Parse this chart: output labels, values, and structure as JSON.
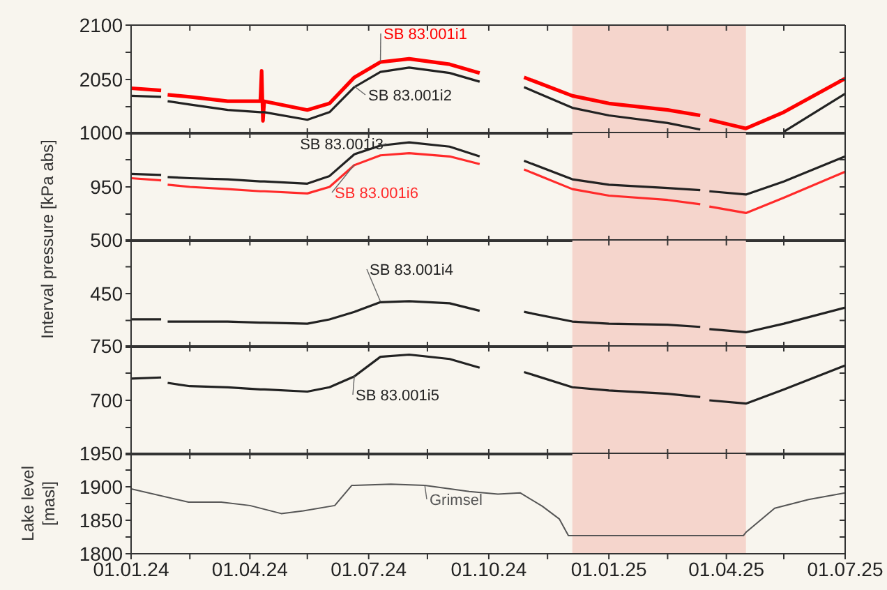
{
  "chart_data": [
    {
      "type": "line",
      "x": [
        "2024-01-01",
        "2024-01-24",
        "2024-01-26",
        "2024-01-29",
        "2024-02-15",
        "2024-03-15",
        "2024-04-09",
        "2024-04-10",
        "2024-04-11",
        "2024-04-12",
        "2024-05-15",
        "2024-06-01",
        "2024-06-20",
        "2024-07-10",
        "2024-08-01",
        "2024-09-01",
        "2024-09-24",
        "2024-10-10",
        "2024-10-28",
        "2024-12-04",
        "2025-01-01",
        "2025-02-15",
        "2025-03-12",
        "2025-03-15",
        "2025-03-19",
        "2025-04-16",
        "2025-05-15",
        "2025-07-01"
      ],
      "series": [
        {
          "name": "SB 83.001i1",
          "color": "#ff0000",
          "values": [
            2042,
            2040,
            null,
            2036,
            2034,
            2030,
            2030,
            2058,
            2012,
            2030,
            2022,
            2028,
            2052,
            2066,
            2069,
            2064,
            2056,
            null,
            2052,
            2035,
            2028,
            2022,
            2017,
            null,
            2013,
            2005,
            2020,
            2051
          ]
        },
        {
          "name": "SB 83.001i2",
          "color": "#222222",
          "values": [
            2035,
            2034,
            null,
            2030,
            2027,
            2022,
            2020,
            2020,
            2020,
            2020,
            2013,
            2020,
            2043,
            2057,
            2061,
            2056,
            2048,
            null,
            2043,
            2024,
            2017,
            2010,
            2004,
            null,
            null,
            null,
            2002,
            2037
          ]
        }
      ],
      "xlim": [
        "2024-01-01",
        "2025-07-01"
      ],
      "xticks": [
        {
          "value": "2024-01-01",
          "label": null
        },
        {
          "value": "2024-02-15",
          "label": null
        },
        {
          "value": "2024-04-01",
          "label": null
        },
        {
          "value": "2024-05-15",
          "label": null
        },
        {
          "value": "2024-07-01",
          "label": null
        },
        {
          "value": "2024-08-15",
          "label": null
        },
        {
          "value": "2024-10-01",
          "label": null
        },
        {
          "value": "2024-11-15",
          "label": null
        },
        {
          "value": "2025-01-01",
          "label": null
        },
        {
          "value": "2025-02-15",
          "label": null
        },
        {
          "value": "2025-04-01",
          "label": null
        },
        {
          "value": "2025-05-15",
          "label": null
        },
        {
          "value": "2025-07-01",
          "label": null
        }
      ],
      "ylim": [
        2000,
        2100
      ],
      "yticks": [
        {
          "value": 2000,
          "label": null
        },
        {
          "value": 2025,
          "label": null
        },
        2050,
        {
          "value": 2075,
          "label": null
        },
        2100
      ],
      "bands": [
        {
          "axis": "x",
          "from": "2024-12-04",
          "to": "2025-04-16",
          "color": "#f5d5cc"
        }
      ],
      "tick_labels": "y",
      "grid": false,
      "legend": false
    },
    {
      "type": "line",
      "ylabel": "Interval pressure [kPa abs]",
      "x": [
        "2024-01-01",
        "2024-01-24",
        "2024-01-26",
        "2024-01-29",
        "2024-02-15",
        "2024-03-15",
        "2024-04-09",
        "2024-04-10",
        "2024-04-11",
        "2024-04-12",
        "2024-05-15",
        "2024-06-01",
        "2024-06-20",
        "2024-07-10",
        "2024-08-01",
        "2024-09-01",
        "2024-09-24",
        "2024-10-10",
        "2024-10-28",
        "2024-12-04",
        "2025-01-01",
        "2025-02-15",
        "2025-03-12",
        "2025-03-15",
        "2025-03-19",
        "2025-04-16",
        "2025-05-15",
        "2025-07-01"
      ],
      "series": [
        {
          "name": "SB 83.001i3",
          "color": "#222222",
          "values": [
            962,
            961,
            null,
            959,
            958,
            957,
            955,
            955,
            955,
            955,
            953,
            960,
            980,
            988,
            991,
            987,
            978,
            null,
            974,
            957,
            952,
            949,
            947,
            null,
            946,
            943,
            955,
            978
          ]
        },
        {
          "name": "SB 83.001i6",
          "color": "#ff2a2a",
          "values": [
            958,
            956,
            null,
            952,
            950,
            948,
            946,
            946,
            946,
            946,
            944,
            950,
            970,
            979,
            981,
            978,
            971,
            null,
            966,
            948,
            942,
            938,
            934,
            null,
            932,
            926,
            940,
            964
          ]
        }
      ],
      "xlim": [
        "2024-01-01",
        "2025-07-01"
      ],
      "xticks": [
        {
          "value": "2024-01-01",
          "label": null
        },
        {
          "value": "2024-02-15",
          "label": null
        },
        {
          "value": "2024-04-01",
          "label": null
        },
        {
          "value": "2024-05-15",
          "label": null
        },
        {
          "value": "2024-07-01",
          "label": null
        },
        {
          "value": "2024-08-15",
          "label": null
        },
        {
          "value": "2024-10-01",
          "label": null
        },
        {
          "value": "2024-11-15",
          "label": null
        },
        {
          "value": "2025-01-01",
          "label": null
        },
        {
          "value": "2025-02-15",
          "label": null
        },
        {
          "value": "2025-04-01",
          "label": null
        },
        {
          "value": "2025-05-15",
          "label": null
        },
        {
          "value": "2025-07-01",
          "label": null
        }
      ],
      "ylim": [
        900,
        1000
      ],
      "yticks": [
        {
          "value": 900,
          "label": null
        },
        {
          "value": 925,
          "label": null
        },
        950,
        {
          "value": 975,
          "label": null
        },
        1000
      ],
      "bands": [
        {
          "axis": "x",
          "from": "2024-12-04",
          "to": "2025-04-16",
          "color": "#f5d5cc"
        }
      ],
      "tick_labels": "y",
      "grid": false,
      "legend": false
    },
    {
      "type": "line",
      "x": [
        "2024-01-01",
        "2024-01-24",
        "2024-01-26",
        "2024-01-29",
        "2024-02-15",
        "2024-03-15",
        "2024-04-09",
        "2024-04-10",
        "2024-04-11",
        "2024-04-12",
        "2024-05-15",
        "2024-06-01",
        "2024-06-20",
        "2024-07-10",
        "2024-08-01",
        "2024-09-01",
        "2024-09-24",
        "2024-10-10",
        "2024-10-28",
        "2024-12-04",
        "2025-01-01",
        "2025-02-15",
        "2025-03-12",
        "2025-03-15",
        "2025-03-19",
        "2025-04-16",
        "2025-05-15",
        "2025-07-01"
      ],
      "series": [
        {
          "name": "SB 83.001i4",
          "color": "#222222",
          "values": [
            426,
            426,
            null,
            424,
            424,
            424,
            423,
            423,
            423,
            423,
            422,
            426,
            433,
            442,
            443,
            441,
            434,
            null,
            433,
            424,
            422,
            421,
            419,
            null,
            417,
            414,
            422,
            437
          ]
        }
      ],
      "xlim": [
        "2024-01-01",
        "2025-07-01"
      ],
      "xticks": [
        {
          "value": "2024-01-01",
          "label": null
        },
        {
          "value": "2024-02-15",
          "label": null
        },
        {
          "value": "2024-04-01",
          "label": null
        },
        {
          "value": "2024-05-15",
          "label": null
        },
        {
          "value": "2024-07-01",
          "label": null
        },
        {
          "value": "2024-08-15",
          "label": null
        },
        {
          "value": "2024-10-01",
          "label": null
        },
        {
          "value": "2024-11-15",
          "label": null
        },
        {
          "value": "2025-01-01",
          "label": null
        },
        {
          "value": "2025-02-15",
          "label": null
        },
        {
          "value": "2025-04-01",
          "label": null
        },
        {
          "value": "2025-05-15",
          "label": null
        },
        {
          "value": "2025-07-01",
          "label": null
        }
      ],
      "ylim": [
        400,
        500
      ],
      "yticks": [
        {
          "value": 400,
          "label": null
        },
        {
          "value": 425,
          "label": null
        },
        450,
        {
          "value": 475,
          "label": null
        },
        500
      ],
      "bands": [
        {
          "axis": "x",
          "from": "2024-12-04",
          "to": "2025-04-16",
          "color": "#f5d5cc"
        }
      ],
      "tick_labels": "y",
      "grid": false,
      "legend": false
    },
    {
      "type": "line",
      "x": [
        "2024-01-01",
        "2024-01-24",
        "2024-01-26",
        "2024-01-29",
        "2024-02-15",
        "2024-03-15",
        "2024-04-09",
        "2024-04-10",
        "2024-04-11",
        "2024-04-12",
        "2024-05-15",
        "2024-06-01",
        "2024-06-20",
        "2024-07-10",
        "2024-08-01",
        "2024-09-01",
        "2024-09-24",
        "2024-10-10",
        "2024-10-28",
        "2024-12-04",
        "2025-01-01",
        "2025-02-15",
        "2025-03-12",
        "2025-03-15",
        "2025-03-19",
        "2025-04-16",
        "2025-05-15",
        "2025-07-01"
      ],
      "series": [
        {
          "name": "SB 83.001i5",
          "color": "#222222",
          "values": [
            720,
            721,
            null,
            716,
            713,
            712,
            710,
            710,
            710,
            710,
            708,
            712,
            722,
            740,
            742,
            738,
            730,
            null,
            726,
            712,
            709,
            706,
            703,
            null,
            700,
            697,
            710,
            732
          ]
        }
      ],
      "xlim": [
        "2024-01-01",
        "2025-07-01"
      ],
      "xticks": [
        {
          "value": "2024-01-01",
          "label": null
        },
        {
          "value": "2024-02-15",
          "label": null
        },
        {
          "value": "2024-04-01",
          "label": null
        },
        {
          "value": "2024-05-15",
          "label": null
        },
        {
          "value": "2024-07-01",
          "label": null
        },
        {
          "value": "2024-08-15",
          "label": null
        },
        {
          "value": "2024-10-01",
          "label": null
        },
        {
          "value": "2024-11-15",
          "label": null
        },
        {
          "value": "2025-01-01",
          "label": null
        },
        {
          "value": "2025-02-15",
          "label": null
        },
        {
          "value": "2025-04-01",
          "label": null
        },
        {
          "value": "2025-05-15",
          "label": null
        },
        {
          "value": "2025-07-01",
          "label": null
        }
      ],
      "ylim": [
        650,
        750
      ],
      "yticks": [
        {
          "value": 650,
          "label": null
        },
        {
          "value": 675,
          "label": null
        },
        700,
        {
          "value": 725,
          "label": null
        },
        750
      ],
      "bands": [
        {
          "axis": "x",
          "from": "2024-12-04",
          "to": "2025-04-16",
          "color": "#f5d5cc"
        }
      ],
      "tick_labels": "y",
      "grid": false,
      "legend": false
    },
    {
      "type": "line",
      "ylabel": "Lake level [masl]",
      "series": [
        {
          "name": "Grimsel",
          "color": "#555555",
          "x": [
            "2024-01-01",
            "2024-02-14",
            "2024-03-10",
            "2024-04-01",
            "2024-04-25",
            "2024-05-12",
            "2024-06-05",
            "2024-06-18",
            "2024-07-18",
            "2024-08-13",
            "2024-09-16",
            "2024-10-08",
            "2024-10-25",
            "2024-11-11",
            "2024-11-24",
            "2024-12-01",
            "2025-04-14",
            "2025-04-16",
            "2025-05-08",
            "2025-06-03",
            "2025-07-01"
          ],
          "values": [
            1897,
            1877,
            1877,
            1872,
            1860,
            1864,
            1872,
            1902,
            1904,
            1902,
            1893,
            1889,
            1891,
            1871,
            1852,
            1827,
            1827,
            1832,
            1868,
            1881,
            1891
          ]
        }
      ],
      "xlim": [
        "2024-01-01",
        "2025-07-01"
      ],
      "xticks": [
        {
          "value": "2024-01-01",
          "label": "01.01.24"
        },
        {
          "value": "2024-02-15",
          "label": null
        },
        {
          "value": "2024-04-01",
          "label": "01.04.24"
        },
        {
          "value": "2024-05-15",
          "label": null
        },
        {
          "value": "2024-07-01",
          "label": "01.07.24"
        },
        {
          "value": "2024-08-15",
          "label": null
        },
        {
          "value": "2024-10-01",
          "label": "01.10.24"
        },
        {
          "value": "2024-11-15",
          "label": null
        },
        {
          "value": "2025-01-01",
          "label": "01.01.25"
        },
        {
          "value": "2025-02-15",
          "label": null
        },
        {
          "value": "2025-04-01",
          "label": "01.04.25"
        },
        {
          "value": "2025-05-15",
          "label": null
        },
        {
          "value": "2025-07-01",
          "label": "01.07.25"
        }
      ],
      "ylim": [
        1800,
        1950
      ],
      "yticks": [
        1800,
        {
          "value": 1825,
          "label": null
        },
        1850,
        {
          "value": 1875,
          "label": null
        },
        1900,
        {
          "value": 1925,
          "label": null
        },
        1950
      ],
      "bands": [
        {
          "axis": "x",
          "from": "2024-12-04",
          "to": "2025-04-16",
          "color": "#f5d5cc"
        }
      ],
      "grid": false,
      "legend": false
    }
  ]
}
